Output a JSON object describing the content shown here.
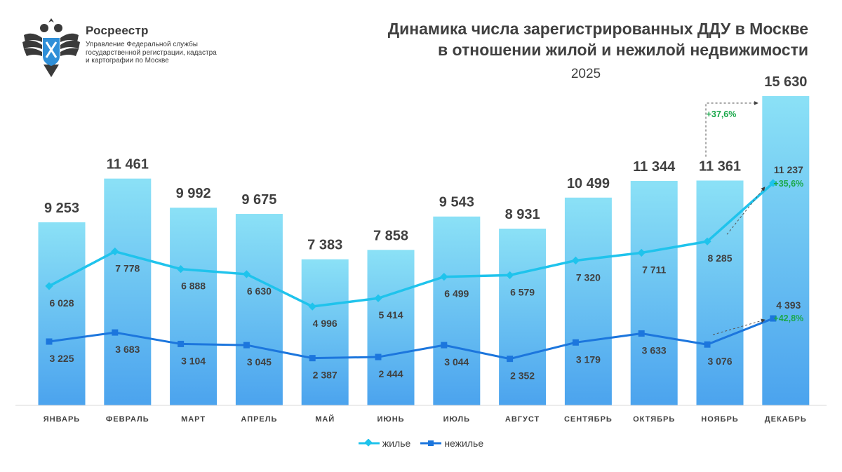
{
  "header": {
    "org_name": "Росреестр",
    "org_sub": "Управление Федеральной службы государственной регистрации, кадастра и картографии по Москве",
    "title_line1": "Динамика числа зарегистрированных ДДУ в Москве",
    "title_line2": "в отношении жилой и нежилой недвижимости",
    "year": "2025"
  },
  "colors": {
    "bar_top": "#8be1f6",
    "bar_bottom": "#4ba3ee",
    "residential": "#1fc3ec",
    "nonresidential": "#1c76dd",
    "growth": "#1aa84a",
    "text": "#404040"
  },
  "chart_data": {
    "type": "bar",
    "categories": [
      "ЯНВАРЬ",
      "ФЕВРАЛЬ",
      "МАРТ",
      "АПРЕЛЬ",
      "МАЙ",
      "ИЮНЬ",
      "ИЮЛЬ",
      "АВГУСТ",
      "СЕНТЯБРЬ",
      "ОКТЯБРЬ",
      "НОЯБРЬ",
      "ДЕКАБРЬ"
    ],
    "totals": [
      9253,
      11461,
      9992,
      9675,
      7383,
      7858,
      9543,
      8931,
      10499,
      11344,
      11361,
      15630
    ],
    "total_labels": [
      "9 253",
      "11 461",
      "9 992",
      "9 675",
      "7 383",
      "7 858",
      "9 543",
      "8 931",
      "10 499",
      "11 344",
      "11 361",
      "15 630"
    ],
    "series": [
      {
        "name": "жилье",
        "values": [
          6028,
          7778,
          6888,
          6630,
          4996,
          5414,
          6499,
          6579,
          7320,
          7711,
          8285,
          11237
        ],
        "labels": [
          "6 028",
          "7 778",
          "6 888",
          "6 630",
          "4 996",
          "5 414",
          "6 499",
          "6 579",
          "7 320",
          "7 711",
          "8 285",
          "11 237"
        ]
      },
      {
        "name": "нежилье",
        "values": [
          3225,
          3683,
          3104,
          3045,
          2387,
          2444,
          3044,
          2352,
          3179,
          3633,
          3076,
          4393
        ],
        "labels": [
          "3 225",
          "3 683",
          "3 104",
          "3 045",
          "2 387",
          "2 444",
          "3 044",
          "2 352",
          "3 179",
          "3 633",
          "3 076",
          "4 393"
        ]
      }
    ],
    "annotations": {
      "total_growth": "+37,6%",
      "residential_growth": "+35,6%",
      "nonresidential_growth": "+42,8%"
    },
    "ylim": [
      0,
      16000
    ],
    "grid": false,
    "legend_position": "bottom"
  }
}
